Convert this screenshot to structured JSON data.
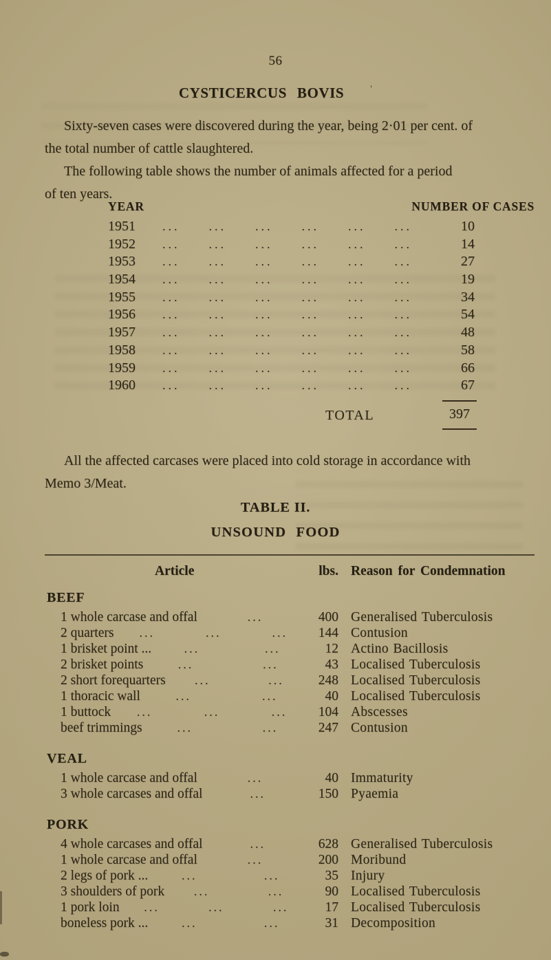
{
  "colors": {
    "paper": "#b0a37c",
    "ink": "#2e2617"
  },
  "page": {
    "number": "56",
    "title": "CYSTICERCUS BOVIS",
    "title_mark": "'",
    "para1_line1": "Sixty-seven cases were discovered during the year, being 2·01 per cent. of",
    "para1_line2": "the total number of cattle slaughtered.",
    "para2_line1": "The following table shows the number of animals affected for a period",
    "para2_line2": "of ten years.",
    "para3_line1": "All the affected carcases were placed into cold storage in accordance with",
    "para3_line2": "Memo 3/Meat."
  },
  "cases_table": {
    "col_year": "YEAR",
    "col_cases": "NUMBER OF CASES",
    "leader": "...",
    "leader_groups": 6,
    "rows": [
      {
        "year": "1951",
        "cases": "10"
      },
      {
        "year": "1952",
        "cases": "14"
      },
      {
        "year": "1953",
        "cases": "27"
      },
      {
        "year": "1954",
        "cases": "19"
      },
      {
        "year": "1955",
        "cases": "34"
      },
      {
        "year": "1956",
        "cases": "54"
      },
      {
        "year": "1957",
        "cases": "48"
      },
      {
        "year": "1958",
        "cases": "58"
      },
      {
        "year": "1959",
        "cases": "66"
      },
      {
        "year": "1960",
        "cases": "67"
      }
    ],
    "total_label": "TOTAL",
    "total_value": "397"
  },
  "table2": {
    "title": "TABLE II.",
    "subtitle": "UNSOUND FOOD",
    "col_article": "Article",
    "col_lbs": "lbs.",
    "col_reason": "Reason for Condemnation",
    "leader": "...",
    "sections": [
      {
        "name": "BEEF",
        "rows": [
          {
            "article": "1 whole carcase and offal",
            "leaders": 1,
            "lbs": "400",
            "reason": "Generalised Tuberculosis"
          },
          {
            "article": "2 quarters",
            "leaders": 3,
            "lbs": "144",
            "reason": "Contusion"
          },
          {
            "article": "1 brisket point ...",
            "leaders": 2,
            "lbs": "12",
            "reason": "Actino Bacillosis"
          },
          {
            "article": "2 brisket points",
            "leaders": 2,
            "lbs": "43",
            "reason": "Localised Tuberculosis"
          },
          {
            "article": "2 short forequarters",
            "leaders": 2,
            "lbs": "248",
            "reason": "Localised Tuberculosis"
          },
          {
            "article": "1 thoracic wall",
            "leaders": 2,
            "lbs": "40",
            "reason": "Localised Tuberculosis"
          },
          {
            "article": "1 buttock",
            "leaders": 3,
            "lbs": "104",
            "reason": "Abscesses"
          },
          {
            "article": "beef trimmings",
            "leaders": 2,
            "lbs": "247",
            "reason": "Contusion"
          }
        ]
      },
      {
        "name": "VEAL",
        "rows": [
          {
            "article": "1 whole carcase and offal",
            "leaders": 1,
            "lbs": "40",
            "reason": "Immaturity"
          },
          {
            "article": "3 whole carcases and offal",
            "leaders": 1,
            "lbs": "150",
            "reason": "Pyaemia"
          }
        ]
      },
      {
        "name": "PORK",
        "rows": [
          {
            "article": "4 whole carcases and offal",
            "leaders": 1,
            "lbs": "628",
            "reason": "Generalised Tuberculosis"
          },
          {
            "article": "1 whole carcase and offal",
            "leaders": 1,
            "lbs": "200",
            "reason": "Moribund"
          },
          {
            "article": "2 legs of pork ...",
            "leaders": 2,
            "lbs": "35",
            "reason": "Injury"
          },
          {
            "article": "3 shoulders of pork",
            "leaders": 2,
            "lbs": "90",
            "reason": "Localised Tuberculosis"
          },
          {
            "article": "1 pork loin",
            "leaders": 3,
            "lbs": "17",
            "reason": "Localised Tuberculosis"
          },
          {
            "article": "boneless pork ...",
            "leaders": 2,
            "lbs": "31",
            "reason": "Decomposition"
          }
        ]
      }
    ]
  }
}
